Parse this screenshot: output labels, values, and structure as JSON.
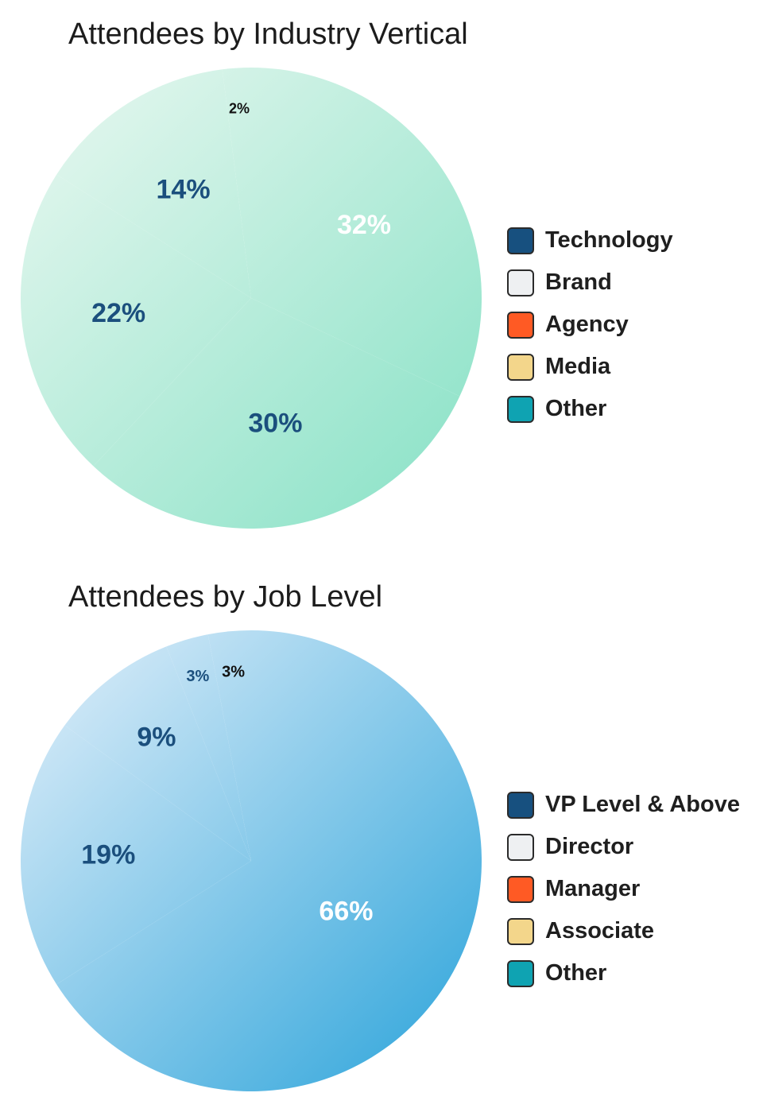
{
  "colors": {
    "gradient_green_light": "#eaf8f1",
    "gradient_green_dark": "#86e1c5",
    "gradient_blue_light": "#e4f0fa",
    "gradient_blue_dark": "#2aa3da",
    "label_navy": "#1b4f7d",
    "label_white": "#ffffff",
    "label_black": "#111111"
  },
  "chart_data": [
    {
      "type": "pie",
      "title": "Attendees by Industry Vertical",
      "categories": [
        "Technology",
        "Brand",
        "Agency",
        "Media",
        "Other"
      ],
      "values": [
        32,
        30,
        22,
        14,
        2
      ],
      "data_labels": [
        "32%",
        "30%",
        "22%",
        "14%",
        "2%"
      ],
      "legend": [
        "Technology",
        "Brand",
        "Agency",
        "Media",
        "Other"
      ],
      "legend_colors": [
        "#17507f",
        "#eef0f2",
        "#ff5a24",
        "#f3d68b",
        "#0fa3b2"
      ],
      "legend_position": "right",
      "slice_colors": "single gradient fill (light mint to green)",
      "label_colors": [
        "#ffffff",
        "#1b4f7d",
        "#1b4f7d",
        "#1b4f7d",
        "#111111"
      ]
    },
    {
      "type": "pie",
      "title": "Attendees by Job Level",
      "categories": [
        "VP Level & Above",
        "Director",
        "Manager",
        "Associate",
        "Other"
      ],
      "values": [
        66,
        19,
        9,
        3,
        3
      ],
      "data_labels": [
        "66%",
        "19%",
        "9%",
        "3%",
        "3%"
      ],
      "legend": [
        "VP Level & Above",
        "Director",
        "Manager",
        "Associate",
        "Other"
      ],
      "legend_colors": [
        "#17507f",
        "#eef0f2",
        "#ff5a24",
        "#f3d68b",
        "#0fa3b2"
      ],
      "legend_position": "right",
      "slice_colors": "single gradient fill (light sky to blue)",
      "label_colors": [
        "#ffffff",
        "#1b4f7d",
        "#1b4f7d",
        "#1b4f7d",
        "#111111"
      ]
    }
  ]
}
